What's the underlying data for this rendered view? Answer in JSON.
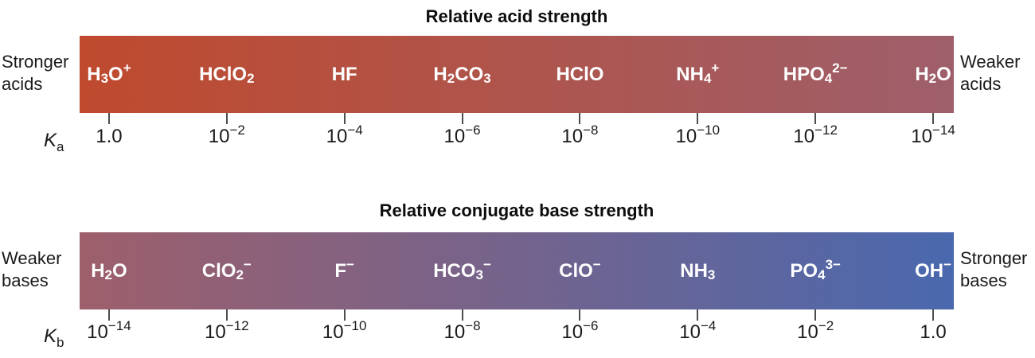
{
  "acid": {
    "title": "Relative acid strength",
    "left_label": [
      "Stronger",
      "acids"
    ],
    "right_label": [
      "Weaker",
      "acids"
    ],
    "k_symbol": {
      "letter": "K",
      "sub": "a"
    },
    "gradient": {
      "from": "#bf4a2e",
      "to": "#9e5f6b"
    },
    "species": [
      {
        "name": "hydronium",
        "formula": [
          [
            "H"
          ],
          [
            "3",
            "sub"
          ],
          [
            "O"
          ],
          [
            "+",
            "sup"
          ]
        ],
        "k": {
          "base": "1.0",
          "exp": ""
        }
      },
      {
        "name": "chlorous-acid",
        "formula": [
          [
            "HClO"
          ],
          [
            "2",
            "sub"
          ]
        ],
        "k": {
          "base": "10",
          "exp": "−2"
        }
      },
      {
        "name": "hydrofluoric-acid",
        "formula": [
          [
            "HF"
          ]
        ],
        "k": {
          "base": "10",
          "exp": "−4"
        }
      },
      {
        "name": "carbonic-acid",
        "formula": [
          [
            "H"
          ],
          [
            "2",
            "sub"
          ],
          [
            "CO"
          ],
          [
            "3",
            "sub"
          ]
        ],
        "k": {
          "base": "10",
          "exp": "−6"
        }
      },
      {
        "name": "hypochlorous-acid",
        "formula": [
          [
            "HClO"
          ]
        ],
        "k": {
          "base": "10",
          "exp": "−8"
        }
      },
      {
        "name": "ammonium",
        "formula": [
          [
            "NH"
          ],
          [
            "4",
            "sub"
          ],
          [
            "+",
            "sup"
          ]
        ],
        "k": {
          "base": "10",
          "exp": "−10"
        }
      },
      {
        "name": "hydrogen-phosphate",
        "formula": [
          [
            "HPO"
          ],
          [
            "4",
            "sub"
          ],
          [
            "2−",
            "sup"
          ]
        ],
        "k": {
          "base": "10",
          "exp": "−12"
        }
      },
      {
        "name": "water",
        "formula": [
          [
            "H"
          ],
          [
            "2",
            "sub"
          ],
          [
            "O"
          ]
        ],
        "k": {
          "base": "10",
          "exp": "−14"
        }
      }
    ]
  },
  "base": {
    "title": "Relative conjugate base strength",
    "left_label": [
      "Weaker",
      "bases"
    ],
    "right_label": [
      "Stronger",
      "bases"
    ],
    "k_symbol": {
      "letter": "K",
      "sub": "b"
    },
    "gradient": {
      "from": "#9e5f6b",
      "to": "#4a68ae"
    },
    "species": [
      {
        "name": "water",
        "formula": [
          [
            "H"
          ],
          [
            "2",
            "sub"
          ],
          [
            "O"
          ]
        ],
        "k": {
          "base": "10",
          "exp": "−14"
        }
      },
      {
        "name": "chlorite",
        "formula": [
          [
            "ClO"
          ],
          [
            "2",
            "sub"
          ],
          [
            "−",
            "sup"
          ]
        ],
        "k": {
          "base": "10",
          "exp": "−12"
        }
      },
      {
        "name": "fluoride",
        "formula": [
          [
            "F"
          ],
          [
            "−",
            "sup"
          ]
        ],
        "k": {
          "base": "10",
          "exp": "−10"
        }
      },
      {
        "name": "bicarbonate",
        "formula": [
          [
            "HCO"
          ],
          [
            "3",
            "sub"
          ],
          [
            "−",
            "sup"
          ]
        ],
        "k": {
          "base": "10",
          "exp": "−8"
        }
      },
      {
        "name": "hypochlorite",
        "formula": [
          [
            "ClO"
          ],
          [
            "−",
            "sup"
          ]
        ],
        "k": {
          "base": "10",
          "exp": "−6"
        }
      },
      {
        "name": "ammonia",
        "formula": [
          [
            "NH"
          ],
          [
            "3",
            "sub"
          ]
        ],
        "k": {
          "base": "10",
          "exp": "−4"
        }
      },
      {
        "name": "phosphate",
        "formula": [
          [
            "PO"
          ],
          [
            "4",
            "sub"
          ],
          [
            "3−",
            "sup"
          ]
        ],
        "k": {
          "base": "10",
          "exp": "−2"
        }
      },
      {
        "name": "hydroxide",
        "formula": [
          [
            "OH"
          ],
          [
            "−",
            "sup"
          ]
        ],
        "k": {
          "base": "1.0",
          "exp": ""
        }
      }
    ]
  }
}
